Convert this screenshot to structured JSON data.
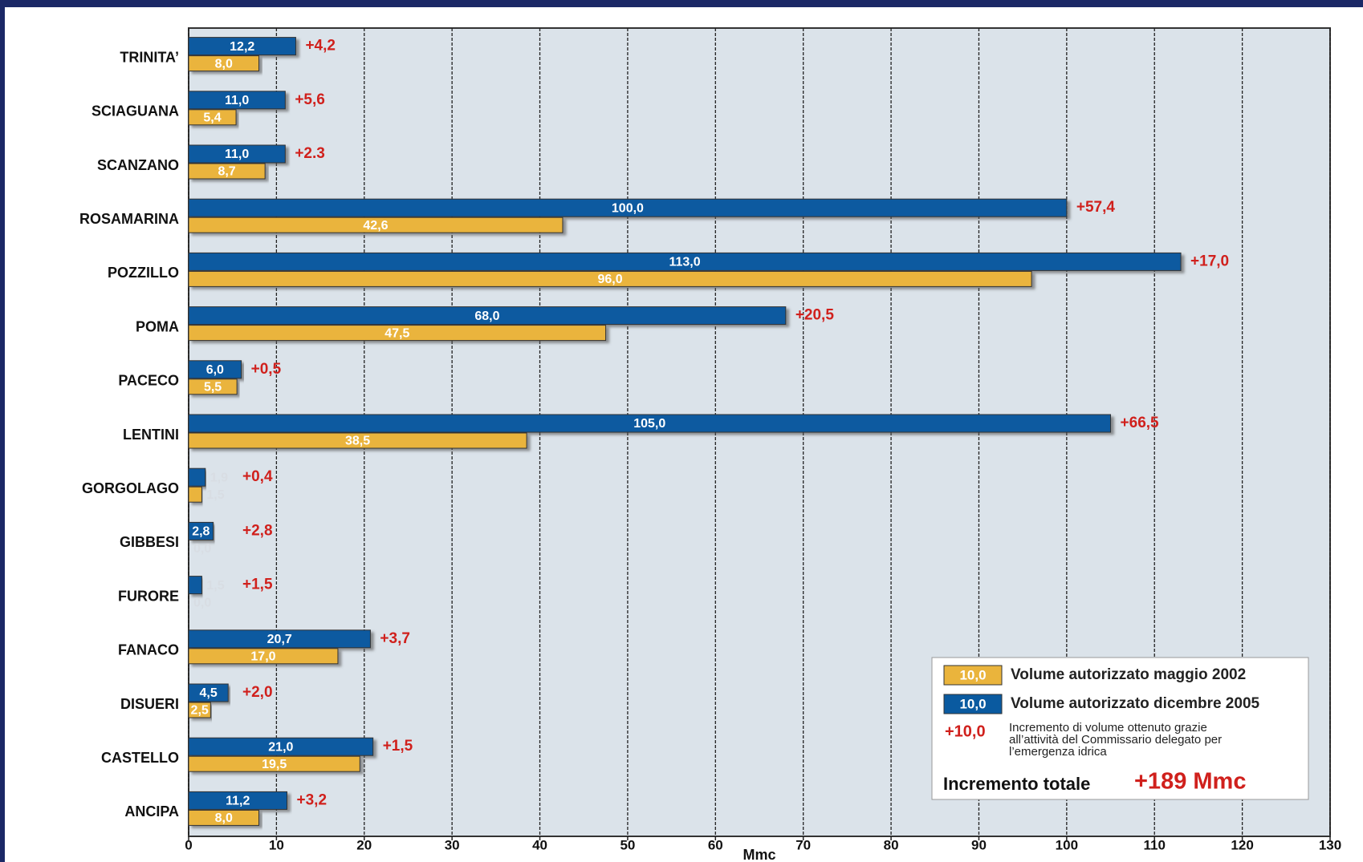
{
  "chart_data": {
    "type": "hbar",
    "categories": [
      "TRINITA’",
      "SCIAGUANA",
      "SCANZANO",
      "ROSAMARINA",
      "POZZILLO",
      "POMA",
      "PACECO",
      "LENTINI",
      "GORGOLAGO",
      "GIBBESI",
      "FURORE",
      "FANACO",
      "DISUERI",
      "CASTELLO",
      "ANCIPA"
    ],
    "series": [
      {
        "name": "Volume autorizzato dicembre 2005",
        "color": "#0a5aa0",
        "values": [
          12.2,
          11.0,
          11.0,
          100.0,
          113.0,
          68.0,
          6.0,
          105.0,
          1.9,
          2.8,
          1.5,
          20.7,
          4.5,
          21.0,
          11.2
        ],
        "value_labels": [
          "12,2",
          "11,0",
          "11,0",
          "100,0",
          "113,0",
          "68,0",
          "6,0",
          "105,0",
          "1,9",
          "2,8",
          "1,5",
          "20,7",
          "4,5",
          "21,0",
          "11,2"
        ]
      },
      {
        "name": "Volume autorizzato maggio 2002",
        "color": "#eab43c",
        "values": [
          8.0,
          5.4,
          8.7,
          42.6,
          96.0,
          47.5,
          5.5,
          38.5,
          1.5,
          0.0,
          0.0,
          17.0,
          2.5,
          19.5,
          8.0
        ],
        "value_labels": [
          "8,0",
          "5,4",
          "8,7",
          "42,6",
          "96,0",
          "47,5",
          "5,5",
          "38,5",
          "1,5",
          "0,0",
          "0,0",
          "17,0",
          "2,5",
          "19,5",
          "8,0"
        ]
      },
      {
        "name": "Incremento di volume ottenuto grazie all’attività del Commissario delegato per l’emergenza idrica",
        "color": "#d0201c",
        "values": [
          4.2,
          5.6,
          2.3,
          57.4,
          17.0,
          20.5,
          0.5,
          66.5,
          0.4,
          2.8,
          1.5,
          3.7,
          2.0,
          1.5,
          3.2
        ],
        "value_labels": [
          "+4,2",
          "+5,6",
          "+2.3",
          "+57,4",
          "+17,0",
          "+20,5",
          "+0,5",
          "+66,5",
          "+0,4",
          "+2,8",
          "+1,5",
          "+3,7",
          "+2,0",
          "+1,5",
          "+3,2"
        ]
      }
    ],
    "legend_samples": [
      "10,0",
      "10,0",
      "+10,0"
    ],
    "total_label": "Incremento totale",
    "total_value_label": "+189 Mmc",
    "xlabel": "Mmc",
    "xlim": [
      0,
      130
    ],
    "xticks": [
      0,
      10,
      20,
      30,
      40,
      50,
      60,
      70,
      80,
      90,
      100,
      110,
      120,
      130
    ],
    "grid": true
  }
}
